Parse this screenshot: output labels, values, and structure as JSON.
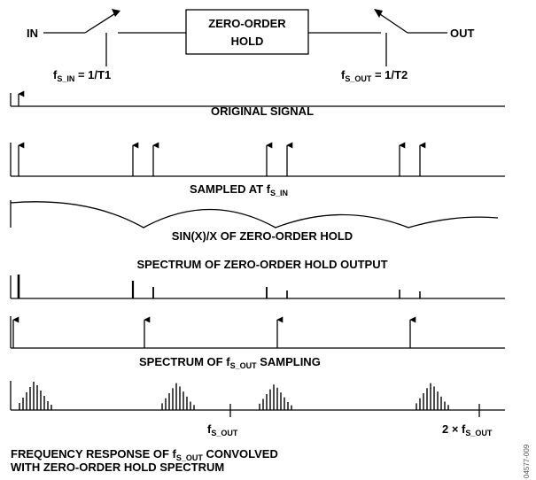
{
  "block_diagram": {
    "input_label": "IN",
    "output_label": "OUT",
    "block_label_line1": "ZERO-ORDER",
    "block_label_line2": "HOLD",
    "fs_in": {
      "main": "f",
      "sub": "S_IN",
      "suffix": " = 1/T1"
    },
    "fs_out": {
      "main": "f",
      "sub": "S_OUT",
      "suffix": " = 1/T2"
    }
  },
  "panels": {
    "original_signal": "ORIGINAL SIGNAL",
    "sampled_prefix": "SAMPLED AT f",
    "sampled_sub": "S_IN",
    "sinx": "SIN(X)/X OF ZERO-ORDER HOLD",
    "spectrum_zoh": "SPECTRUM OF ZERO-ORDER HOLD OUTPUT",
    "spectrum_fsout_prefix": "SPECTRUM OF f",
    "spectrum_fsout_sub": "S_OUT",
    "spectrum_fsout_suffix": " SAMPLING"
  },
  "axis_marks": {
    "fsout_main": "f",
    "fsout_sub": "S_OUT",
    "two_fsout_prefix": "2 × f",
    "two_fsout_sub": "S_OUT"
  },
  "caption": {
    "line1_prefix": "FREQUENCY RESPONSE OF f",
    "line1_sub": "S_OUT",
    "line1_suffix": " CONVOLVED",
    "line2": "WITH ZERO-ORDER HOLD SPECTRUM"
  },
  "figure_id": "04577-009"
}
